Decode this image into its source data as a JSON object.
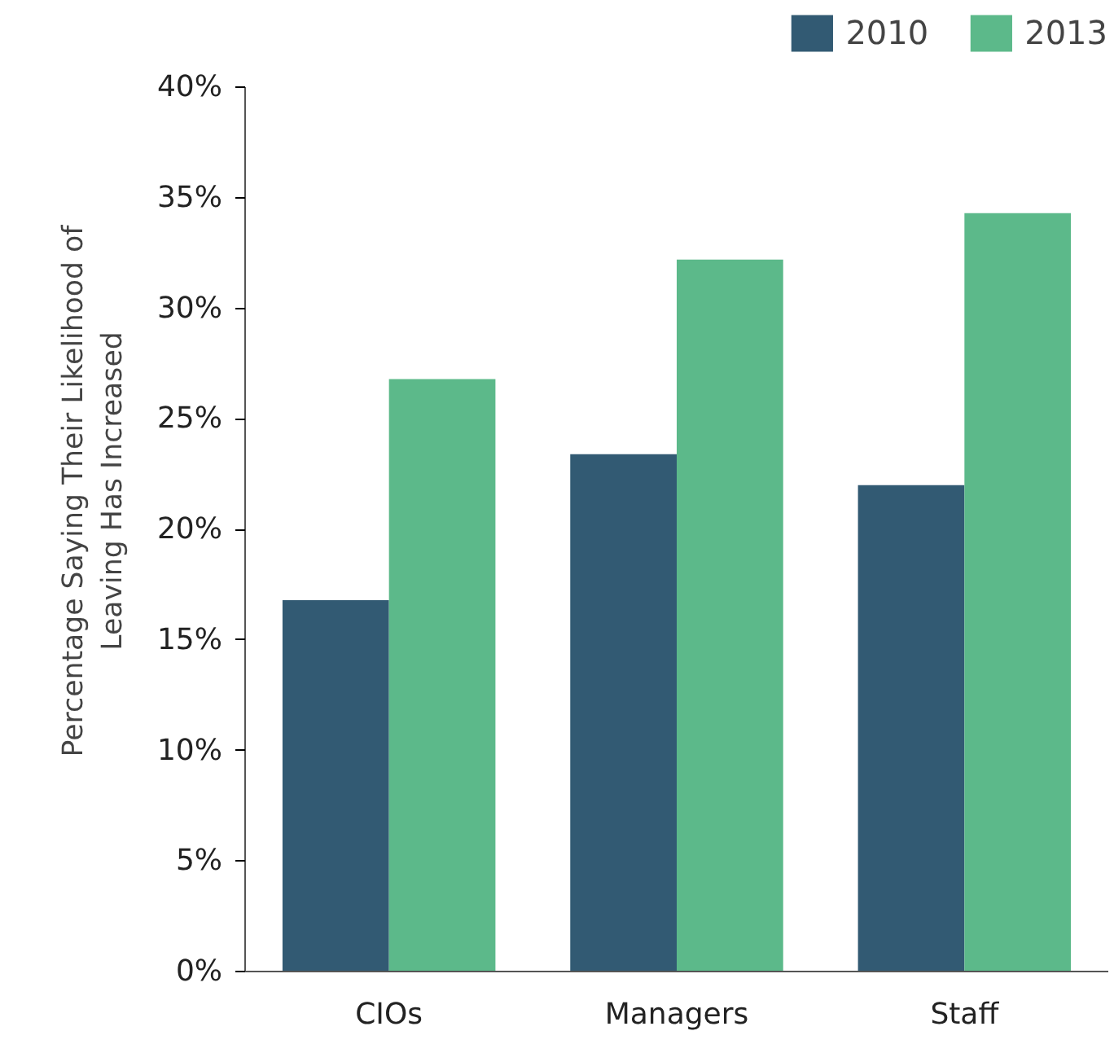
{
  "chart_data": {
    "type": "bar",
    "ylabel": "Percentage Saying Their Likelihood of\nLeaving Has Increased",
    "categories": [
      "CIOs",
      "Managers",
      "Staff"
    ],
    "series": [
      {
        "name": "2010",
        "color": "#325a73",
        "values": [
          16.8,
          23.4,
          22.0
        ]
      },
      {
        "name": "2013",
        "color": "#5cb98a",
        "values": [
          26.8,
          32.2,
          34.3
        ]
      }
    ],
    "ylim": [
      0,
      40
    ],
    "yticks": [
      {
        "value": 0,
        "label": "0%"
      },
      {
        "value": 5,
        "label": "5%"
      },
      {
        "value": 10,
        "label": "10%"
      },
      {
        "value": 15,
        "label": "15%"
      },
      {
        "value": 20,
        "label": "20%"
      },
      {
        "value": 25,
        "label": "25%"
      },
      {
        "value": 30,
        "label": "30%"
      },
      {
        "value": 35,
        "label": "35%"
      },
      {
        "value": 40,
        "label": "40%"
      }
    ],
    "grid": false,
    "legend": "top right"
  }
}
